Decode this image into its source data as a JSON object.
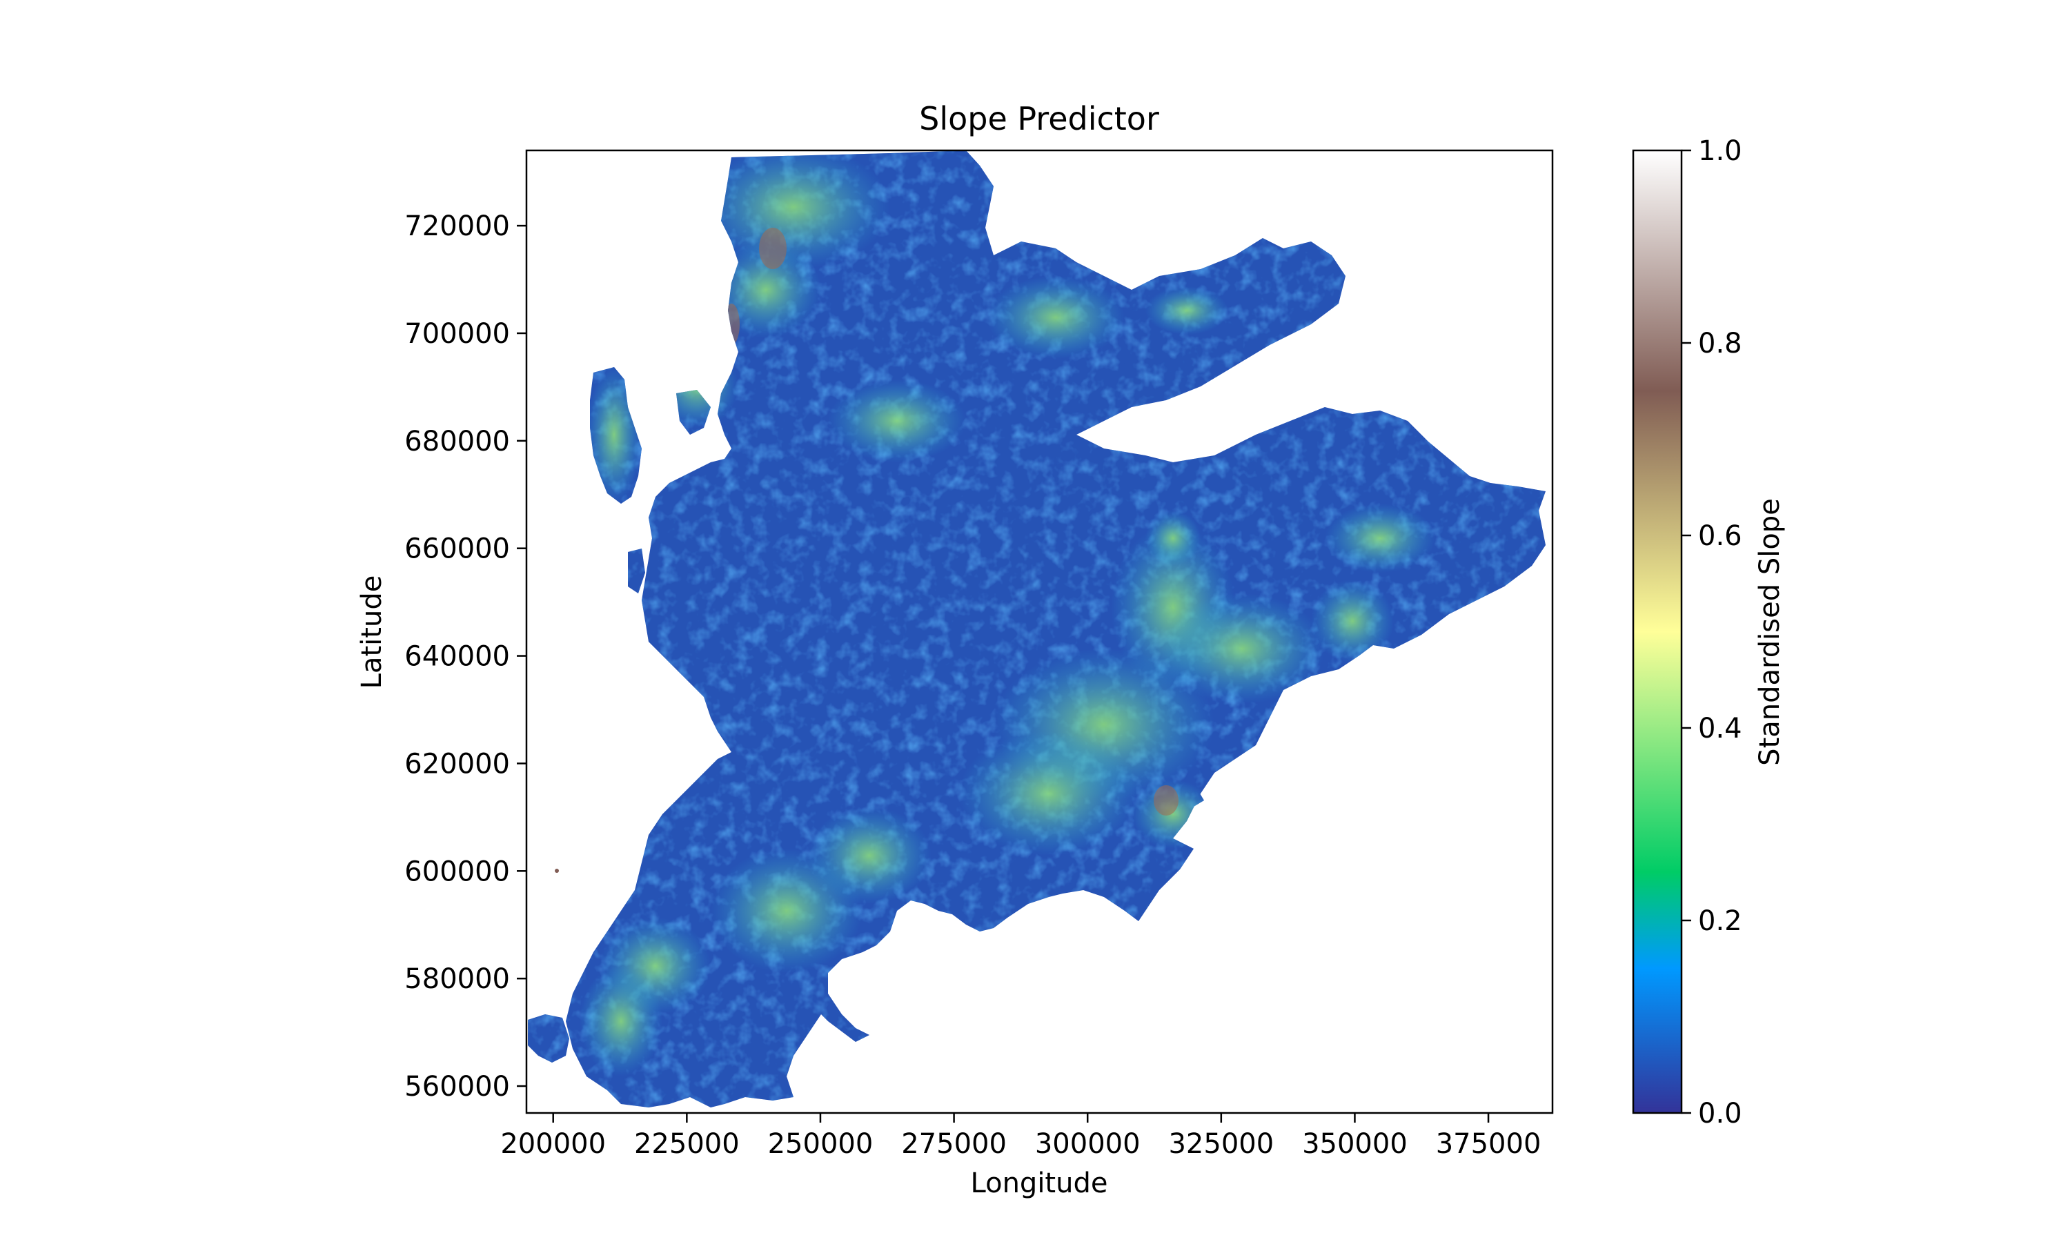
{
  "chart_data": {
    "type": "heatmap",
    "title": "Slope Predictor",
    "xlabel": "Longitude",
    "ylabel": "Latitude",
    "xlim": [
      195000,
      387000
    ],
    "ylim": [
      555000,
      734000
    ],
    "xticks": [
      {
        "value": 200000,
        "label": "200000"
      },
      {
        "value": 225000,
        "label": "225000"
      },
      {
        "value": 250000,
        "label": "250000"
      },
      {
        "value": 275000,
        "label": "275000"
      },
      {
        "value": 300000,
        "label": "300000"
      },
      {
        "value": 325000,
        "label": "325000"
      },
      {
        "value": 350000,
        "label": "350000"
      },
      {
        "value": 375000,
        "label": "375000"
      }
    ],
    "yticks": [
      {
        "value": 560000,
        "label": "560000"
      },
      {
        "value": 580000,
        "label": "580000"
      },
      {
        "value": 600000,
        "label": "600000"
      },
      {
        "value": 620000,
        "label": "620000"
      },
      {
        "value": 640000,
        "label": "640000"
      },
      {
        "value": 660000,
        "label": "660000"
      },
      {
        "value": 680000,
        "label": "680000"
      },
      {
        "value": 700000,
        "label": "700000"
      },
      {
        "value": 720000,
        "label": "720000"
      }
    ],
    "colorbar": {
      "label": "Standardised Slope",
      "colormap": "terrain",
      "range": [
        0.0,
        1.0
      ],
      "ticks": [
        {
          "value": 0.0,
          "label": "0.0"
        },
        {
          "value": 0.2,
          "label": "0.2"
        },
        {
          "value": 0.4,
          "label": "0.4"
        },
        {
          "value": 0.6,
          "label": "0.6"
        },
        {
          "value": 0.8,
          "label": "0.8"
        },
        {
          "value": 1.0,
          "label": "1.0"
        }
      ],
      "stops": [
        {
          "value": 0.0,
          "color": "#333399"
        },
        {
          "value": 0.15,
          "color": "#0099ff"
        },
        {
          "value": 0.25,
          "color": "#00cc66"
        },
        {
          "value": 0.5,
          "color": "#ffff99"
        },
        {
          "value": 0.75,
          "color": "#805c54"
        },
        {
          "value": 1.0,
          "color": "#ffffff"
        }
      ]
    },
    "grid": false
  }
}
